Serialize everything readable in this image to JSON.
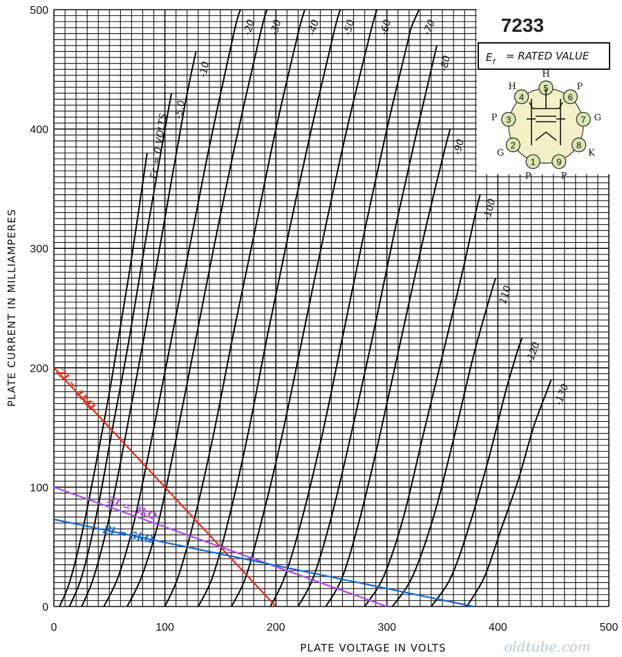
{
  "chart_data": {
    "type": "line",
    "title": "7233",
    "subtitle": "= RATED VALUE",
    "xlabel": "PLATE VOLTAGE IN VOLTS",
    "ylabel": "PLATE CURRENT IN MILLIAMPERES",
    "xlim": [
      0,
      500
    ],
    "ylim": [
      0,
      500
    ],
    "x_ticks": [
      "0",
      "100",
      "200",
      "300",
      "400",
      "500"
    ],
    "y_ticks": [
      "0",
      "100",
      "200",
      "300",
      "400",
      "500"
    ],
    "grid": true,
    "grid_minor": {
      "x": 10,
      "y": 5
    },
    "curve_family_label": "Ec = 0 VOLTS",
    "curves": [
      {
        "name": "0",
        "points": [
          [
            5,
            0
          ],
          [
            14,
            20
          ],
          [
            25,
            60
          ],
          [
            38,
            120
          ],
          [
            52,
            190
          ],
          [
            68,
            280
          ],
          [
            84,
            380
          ]
        ]
      },
      {
        "name": "-5.0",
        "points": [
          [
            14,
            0
          ],
          [
            25,
            25
          ],
          [
            38,
            75
          ],
          [
            52,
            145
          ],
          [
            68,
            225
          ],
          [
            85,
            320
          ],
          [
            102,
            410
          ],
          [
            106,
            430
          ]
        ]
      },
      {
        "name": "-10",
        "points": [
          [
            25,
            0
          ],
          [
            36,
            25
          ],
          [
            50,
            75
          ],
          [
            65,
            145
          ],
          [
            82,
            230
          ],
          [
            99,
            320
          ],
          [
            118,
            420
          ],
          [
            128,
            465
          ]
        ]
      },
      {
        "name": "-20",
        "points": [
          [
            45,
            0
          ],
          [
            58,
            25
          ],
          [
            72,
            70
          ],
          [
            88,
            140
          ],
          [
            104,
            215
          ],
          [
            122,
            300
          ],
          [
            140,
            385
          ],
          [
            162,
            480
          ],
          [
            168,
            500
          ]
        ]
      },
      {
        "name": "-30",
        "points": [
          [
            66,
            0
          ],
          [
            79,
            25
          ],
          [
            94,
            70
          ],
          [
            110,
            140
          ],
          [
            127,
            220
          ],
          [
            145,
            305
          ],
          [
            164,
            390
          ],
          [
            186,
            480
          ],
          [
            192,
            500
          ]
        ]
      },
      {
        "name": "-40",
        "points": [
          [
            100,
            0
          ],
          [
            112,
            25
          ],
          [
            127,
            75
          ],
          [
            144,
            145
          ],
          [
            162,
            230
          ],
          [
            180,
            310
          ],
          [
            200,
            400
          ],
          [
            220,
            480
          ],
          [
            226,
            500
          ]
        ]
      },
      {
        "name": "-50",
        "points": [
          [
            130,
            0
          ],
          [
            143,
            25
          ],
          [
            158,
            75
          ],
          [
            175,
            145
          ],
          [
            193,
            230
          ],
          [
            212,
            315
          ],
          [
            232,
            400
          ],
          [
            252,
            480
          ],
          [
            258,
            500
          ]
        ]
      },
      {
        "name": "-60",
        "points": [
          [
            160,
            0
          ],
          [
            173,
            25
          ],
          [
            188,
            75
          ],
          [
            206,
            145
          ],
          [
            225,
            230
          ],
          [
            244,
            315
          ],
          [
            264,
            400
          ],
          [
            285,
            480
          ],
          [
            291,
            500
          ]
        ]
      },
      {
        "name": "-70",
        "points": [
          [
            195,
            0
          ],
          [
            208,
            25
          ],
          [
            224,
            75
          ],
          [
            242,
            145
          ],
          [
            261,
            230
          ],
          [
            280,
            315
          ],
          [
            300,
            400
          ],
          [
            318,
            470
          ],
          [
            322,
            485
          ],
          [
            329,
            500
          ]
        ]
      },
      {
        "name": "-80",
        "points": [
          [
            220,
            0
          ],
          [
            234,
            25
          ],
          [
            250,
            75
          ],
          [
            268,
            145
          ],
          [
            287,
            225
          ],
          [
            306,
            310
          ],
          [
            325,
            390
          ],
          [
            340,
            450
          ],
          [
            345,
            470
          ]
        ]
      },
      {
        "name": "-90",
        "points": [
          [
            245,
            0
          ],
          [
            260,
            25
          ],
          [
            276,
            75
          ],
          [
            294,
            145
          ],
          [
            313,
            225
          ],
          [
            332,
            305
          ],
          [
            350,
            375
          ],
          [
            357,
            400
          ]
        ]
      },
      {
        "name": "-100",
        "points": [
          [
            280,
            0
          ],
          [
            297,
            25
          ],
          [
            315,
            75
          ],
          [
            333,
            145
          ],
          [
            350,
            210
          ],
          [
            368,
            280
          ],
          [
            380,
            330
          ],
          [
            384,
            345
          ]
        ]
      },
      {
        "name": "110",
        "points": [
          [
            305,
            0
          ],
          [
            323,
            25
          ],
          [
            342,
            75
          ],
          [
            360,
            140
          ],
          [
            378,
            210
          ],
          [
            393,
            260
          ],
          [
            398,
            275
          ]
        ]
      },
      {
        "name": "-120",
        "points": [
          [
            340,
            0
          ],
          [
            358,
            25
          ],
          [
            375,
            70
          ],
          [
            392,
            125
          ],
          [
            407,
            180
          ],
          [
            418,
            215
          ],
          [
            422,
            225
          ]
        ]
      },
      {
        "name": "-130",
        "points": [
          [
            372,
            0
          ],
          [
            388,
            25
          ],
          [
            403,
            65
          ],
          [
            418,
            105
          ],
          [
            432,
            150
          ],
          [
            444,
            180
          ],
          [
            448,
            190
          ]
        ]
      }
    ],
    "load_lines": [
      {
        "name": "Zl = 1kΩ",
        "color": "#e8270f",
        "from": [
          0,
          200
        ],
        "to": [
          200,
          0
        ]
      },
      {
        "name": "Zl = 3kΩ",
        "color": "#b04ae6",
        "from": [
          0,
          100
        ],
        "to": [
          300,
          0
        ]
      },
      {
        "name": "Zl = 5kΩ",
        "color": "#1268d6",
        "from": [
          0,
          73
        ],
        "to": [
          378,
          0
        ]
      }
    ]
  },
  "tube_basing": {
    "title": "7233",
    "heater_label": "= RATED VALUE",
    "pins": [
      {
        "number": "1",
        "name": "P"
      },
      {
        "number": "2",
        "name": "G"
      },
      {
        "number": "3",
        "name": "P"
      },
      {
        "number": "4",
        "name": "H"
      },
      {
        "number": "5",
        "name": "H"
      },
      {
        "number": "6",
        "name": "P"
      },
      {
        "number": "7",
        "name": "G"
      },
      {
        "number": "8",
        "name": "K"
      },
      {
        "number": "9",
        "name": "P"
      }
    ],
    "body_color": "#f3f0c8",
    "pin_color": "#d9e8b0"
  },
  "watermark": "oldtube.com",
  "colors": {
    "grid": "#111111",
    "curve": "#000000"
  }
}
